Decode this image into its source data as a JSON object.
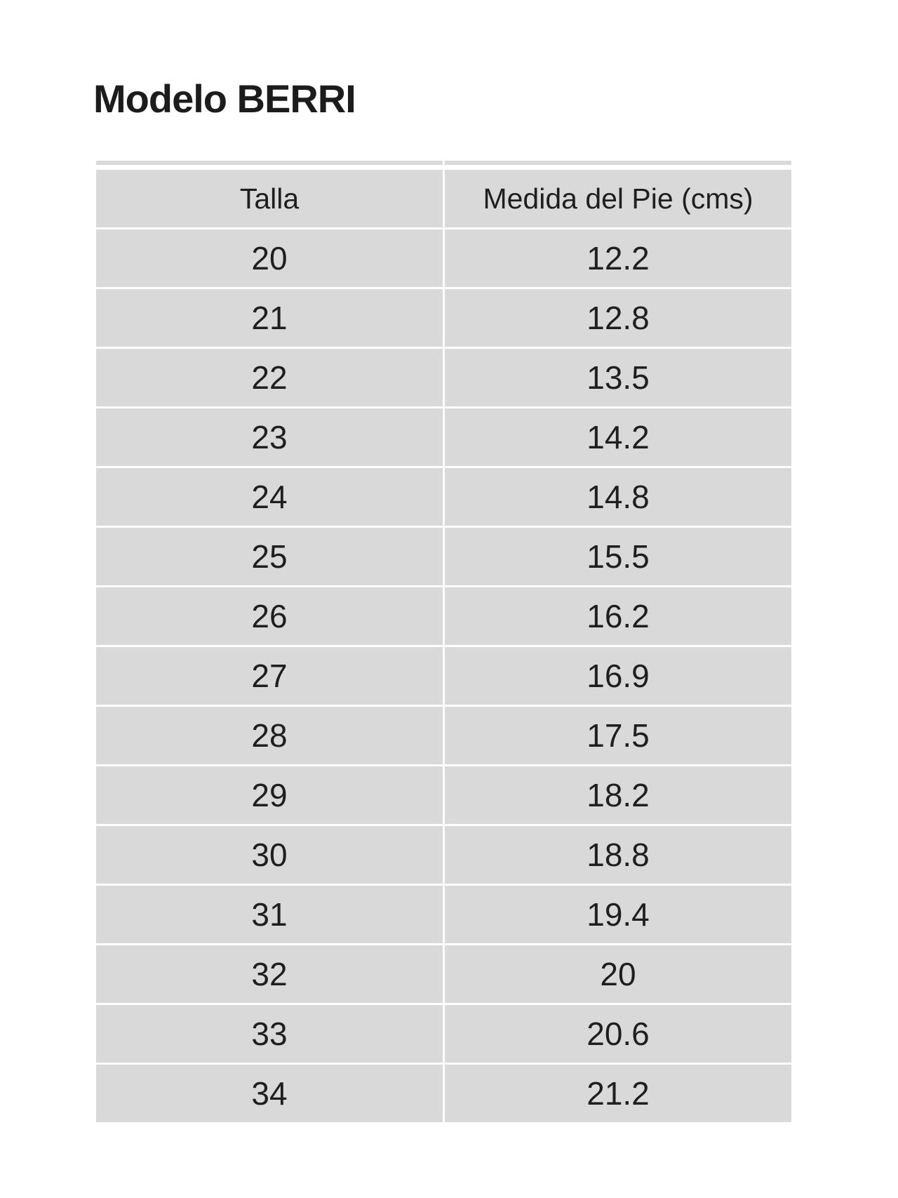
{
  "title": "Modelo BERRI",
  "table": {
    "headers": [
      "Talla",
      "Medida del Pie (cms)"
    ],
    "rows": [
      {
        "talla": "20",
        "medida": "12.2"
      },
      {
        "talla": "21",
        "medida": "12.8"
      },
      {
        "talla": "22",
        "medida": "13.5"
      },
      {
        "talla": "23",
        "medida": "14.2"
      },
      {
        "talla": "24",
        "medida": "14.8"
      },
      {
        "talla": "25",
        "medida": "15.5"
      },
      {
        "talla": "26",
        "medida": "16.2"
      },
      {
        "talla": "27",
        "medida": "16.9"
      },
      {
        "talla": "28",
        "medida": "17.5"
      },
      {
        "talla": "29",
        "medida": "18.2"
      },
      {
        "talla": "30",
        "medida": "18.8"
      },
      {
        "talla": "31",
        "medida": "19.4"
      },
      {
        "talla": "32",
        "medida": "20"
      },
      {
        "talla": "33",
        "medida": "20.6"
      },
      {
        "talla": "34",
        "medida": "21.2"
      }
    ]
  },
  "colors": {
    "page_background": "#ffffff",
    "cell_background": "#d9d9d9",
    "text": "#1f1f1f"
  }
}
